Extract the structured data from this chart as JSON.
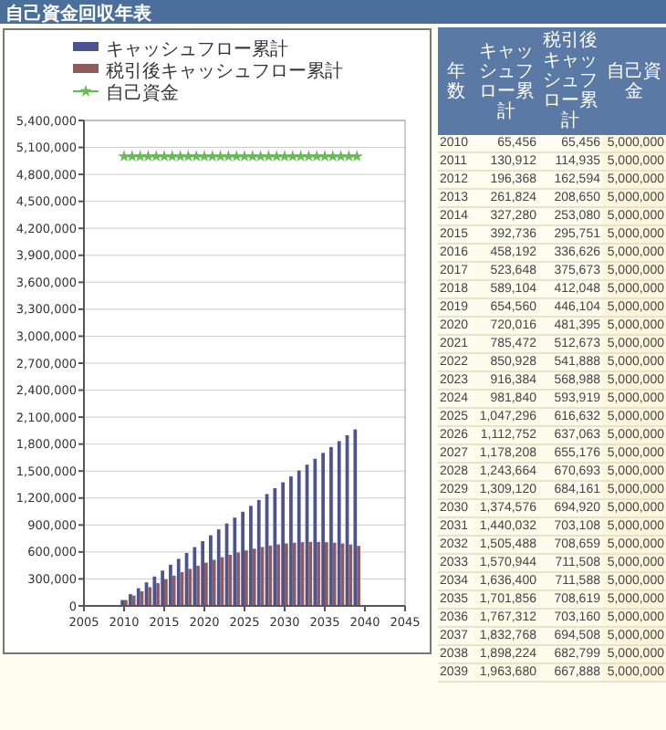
{
  "chart_data": [
    {
      "type": "bar",
      "title": "自己資金回収年表",
      "x": [
        2010,
        2011,
        2012,
        2013,
        2014,
        2015,
        2016,
        2017,
        2018,
        2019,
        2020,
        2021,
        2022,
        2023,
        2024,
        2025,
        2026,
        2027,
        2028,
        2029,
        2030,
        2031,
        2032,
        2033,
        2034,
        2035,
        2036,
        2037,
        2038,
        2039
      ],
      "series": [
        {
          "name": "キャッシュフロー累計",
          "color": "#4d5290",
          "values": [
            65456,
            130912,
            196368,
            261824,
            327280,
            392736,
            458192,
            523648,
            589104,
            654560,
            720016,
            785472,
            850928,
            916384,
            981840,
            1047296,
            1112752,
            1178208,
            1243664,
            1309120,
            1374576,
            1440032,
            1505488,
            1570944,
            1636400,
            1701856,
            1767312,
            1832768,
            1898224,
            1963680
          ]
        },
        {
          "name": "税引後キャッシュフロー累計",
          "color": "#8e5c5c",
          "values": [
            65456,
            114935,
            162594,
            208650,
            253080,
            295751,
            336626,
            375673,
            412048,
            446104,
            481395,
            512673,
            541888,
            568988,
            593919,
            616632,
            637063,
            655176,
            670693,
            684161,
            694920,
            703108,
            708659,
            711508,
            711588,
            708619,
            703160,
            694508,
            682799,
            667888
          ]
        },
        {
          "name": "自己資金",
          "type": "line",
          "color": "#66bb55",
          "marker": "star",
          "values": [
            5000000,
            5000000,
            5000000,
            5000000,
            5000000,
            5000000,
            5000000,
            5000000,
            5000000,
            5000000,
            5000000,
            5000000,
            5000000,
            5000000,
            5000000,
            5000000,
            5000000,
            5000000,
            5000000,
            5000000,
            5000000,
            5000000,
            5000000,
            5000000,
            5000000,
            5000000,
            5000000,
            5000000,
            5000000,
            5000000
          ]
        }
      ],
      "xlim": [
        2005,
        2045
      ],
      "xticks": [
        2005,
        2010,
        2015,
        2020,
        2025,
        2030,
        2035,
        2040,
        2045
      ],
      "ylim": [
        0,
        5400000
      ],
      "yticks": [
        0,
        {
          "value": 300000,
          "label": "300,000"
        },
        {
          "value": 600000,
          "label": "600,000"
        },
        {
          "value": 900000,
          "label": "900,000"
        },
        {
          "value": 1200000,
          "label": "1,200,000"
        },
        {
          "value": 1500000,
          "label": "1,500,000"
        },
        {
          "value": 1800000,
          "label": "1,800,000"
        },
        {
          "value": 2100000,
          "label": "2,100,000"
        },
        {
          "value": 2400000,
          "label": "2,400,000"
        },
        {
          "value": 2700000,
          "label": "2,700,000"
        },
        {
          "value": 3000000,
          "label": "3,000,000"
        },
        {
          "value": 3300000,
          "label": "3,300,000"
        },
        {
          "value": 3600000,
          "label": "3,600,000"
        },
        {
          "value": 3900000,
          "label": "3,900,000"
        },
        {
          "value": 4200000,
          "label": "4,200,000"
        },
        {
          "value": 4500000,
          "label": "4,500,000"
        },
        {
          "value": 4800000,
          "label": "4,800,000"
        },
        {
          "value": 5100000,
          "label": "5,100,000"
        },
        {
          "value": 5400000,
          "label": "5,400,000"
        }
      ],
      "grid": "y",
      "legend": "top"
    },
    {
      "type": "heatmap",
      "ylabel": "年数",
      "categories": [
        "キャッシュフロー累計",
        "税引後キャッシュフロー累計",
        "自己資金"
      ],
      "y_categories": [
        "2010",
        "2011",
        "2012",
        "2013",
        "2014",
        "2015",
        "2016",
        "2017",
        "2018",
        "2019",
        "2020",
        "2021",
        "2022",
        "2023",
        "2024",
        "2025",
        "2026",
        "2027",
        "2028",
        "2029",
        "2030",
        "2031",
        "2032",
        "2033",
        "2034",
        "2035",
        "2036",
        "2037",
        "2038",
        "2039"
      ],
      "cells": [
        [
          65456,
          65456,
          5000000
        ],
        [
          130912,
          114935,
          5000000
        ],
        [
          196368,
          162594,
          5000000
        ],
        [
          261824,
          208650,
          5000000
        ],
        [
          327280,
          253080,
          5000000
        ],
        [
          392736,
          295751,
          5000000
        ],
        [
          458192,
          336626,
          5000000
        ],
        [
          523648,
          375673,
          5000000
        ],
        [
          589104,
          412048,
          5000000
        ],
        [
          654560,
          446104,
          5000000
        ],
        [
          720016,
          481395,
          5000000
        ],
        [
          785472,
          512673,
          5000000
        ],
        [
          850928,
          541888,
          5000000
        ],
        [
          916384,
          568988,
          5000000
        ],
        [
          981840,
          593919,
          5000000
        ],
        [
          1047296,
          616632,
          5000000
        ],
        [
          1112752,
          637063,
          5000000
        ],
        [
          1178208,
          655176,
          5000000
        ],
        [
          1243664,
          670693,
          5000000
        ],
        [
          1309120,
          684161,
          5000000
        ],
        [
          1374576,
          694920,
          5000000
        ],
        [
          1440032,
          703108,
          5000000
        ],
        [
          1505488,
          708659,
          5000000
        ],
        [
          1570944,
          711508,
          5000000
        ],
        [
          1636400,
          711588,
          5000000
        ],
        [
          1701856,
          708619,
          5000000
        ],
        [
          1767312,
          703160,
          5000000
        ],
        [
          1832768,
          694508,
          5000000
        ],
        [
          1898224,
          682799,
          5000000
        ],
        [
          1963680,
          667888,
          5000000
        ]
      ],
      "data_labels": true,
      "cell_labels": [
        [
          "65,456",
          "65,456",
          "5,000,000"
        ],
        [
          "130,912",
          "114,935",
          "5,000,000"
        ],
        [
          "196,368",
          "162,594",
          "5,000,000"
        ],
        [
          "261,824",
          "208,650",
          "5,000,000"
        ],
        [
          "327,280",
          "253,080",
          "5,000,000"
        ],
        [
          "392,736",
          "295,751",
          "5,000,000"
        ],
        [
          "458,192",
          "336,626",
          "5,000,000"
        ],
        [
          "523,648",
          "375,673",
          "5,000,000"
        ],
        [
          "589,104",
          "412,048",
          "5,000,000"
        ],
        [
          "654,560",
          "446,104",
          "5,000,000"
        ],
        [
          "720,016",
          "481,395",
          "5,000,000"
        ],
        [
          "785,472",
          "512,673",
          "5,000,000"
        ],
        [
          "850,928",
          "541,888",
          "5,000,000"
        ],
        [
          "916,384",
          "568,988",
          "5,000,000"
        ],
        [
          "981,840",
          "593,919",
          "5,000,000"
        ],
        [
          "1,047,296",
          "616,632",
          "5,000,000"
        ],
        [
          "1,112,752",
          "637,063",
          "5,000,000"
        ],
        [
          "1,178,208",
          "655,176",
          "5,000,000"
        ],
        [
          "1,243,664",
          "670,693",
          "5,000,000"
        ],
        [
          "1,309,120",
          "684,161",
          "5,000,000"
        ],
        [
          "1,374,576",
          "694,920",
          "5,000,000"
        ],
        [
          "1,440,032",
          "703,108",
          "5,000,000"
        ],
        [
          "1,505,488",
          "708,659",
          "5,000,000"
        ],
        [
          "1,570,944",
          "711,508",
          "5,000,000"
        ],
        [
          "1,636,400",
          "711,588",
          "5,000,000"
        ],
        [
          "1,701,856",
          "708,619",
          "5,000,000"
        ],
        [
          "1,767,312",
          "703,160",
          "5,000,000"
        ],
        [
          "1,832,768",
          "694,508",
          "5,000,000"
        ],
        [
          "1,898,224",
          "682,799",
          "5,000,000"
        ],
        [
          "1,963,680",
          "667,888",
          "5,000,000"
        ]
      ]
    }
  ]
}
